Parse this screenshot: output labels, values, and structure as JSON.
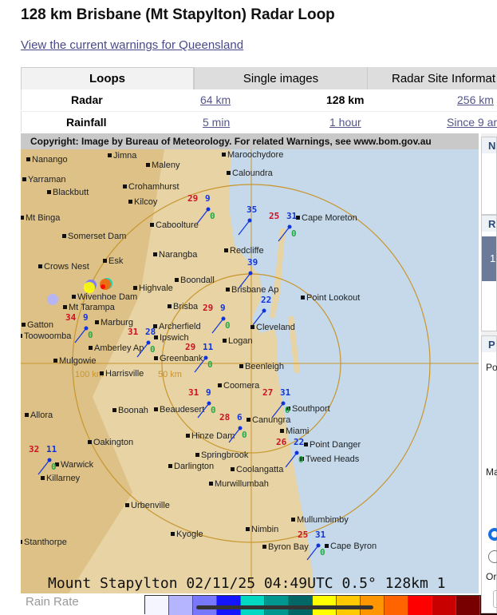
{
  "title": "128 km Brisbane (Mt Stapylton) Radar Loop",
  "warnings_link": "View the current warnings for Queensland",
  "tabs": [
    {
      "label": "Loops",
      "active": true
    },
    {
      "label": "Single images"
    },
    {
      "label": "Radar Site Informat"
    }
  ],
  "radar_row": {
    "label": "Radar",
    "links": [
      "64 km",
      "128 km",
      "256 km"
    ],
    "current": "128 km"
  },
  "rainfall_row": {
    "label": "Rainfall",
    "links": [
      "5 min",
      "1 hour",
      "Since 9 ar"
    ]
  },
  "map": {
    "copyright": "Copyright: Image by Bureau of Meteorology. For related Warnings, see www.bom.gov.au",
    "caption": "Mount Stapylton 02/11/25 04:49UTC 0.5° 128km 1",
    "range_labels": [
      "100 km",
      "50 km"
    ],
    "places": [
      "Nanango",
      "Jimna",
      "Maleny",
      "Maroochydore",
      "Caloundra",
      "Yarraman",
      "Blackbutt",
      "Crohamhurst",
      "Kilcoy",
      "Mt Binga",
      "Caboolture",
      "Somerset Dam",
      "Narangba",
      "Esk",
      "Crows Nest",
      "Redcliffe",
      "Boondall",
      "Highvale",
      "Wivenhoe Dam",
      "Brisbane Ap",
      "Point Lookout",
      "Mt Tarampa",
      "Brisba",
      "Gatton",
      "Marburg",
      "Archerfield",
      "Toowoomba",
      "Amberley Ap",
      "Ipswich",
      "Cleveland",
      "Logan",
      "Mulgowie",
      "Greenbank",
      "Harrisville",
      "Beenleigh",
      "Coomera",
      "Southport",
      "Boonah",
      "Beaudesert",
      "Canungra",
      "Allora",
      "Hinze Dam",
      "Miami",
      "Oakington",
      "Coolangatta",
      "Point Danger",
      "Warwick",
      "Springbrook",
      "Tweed Heads",
      "Darlington",
      "Killarney",
      "Murwillumbah",
      "Urbenville",
      "Mullumbimby",
      "Nimbin",
      "Kyogle",
      "Cape Byron",
      "Stanthorpe",
      "Byron Bay",
      "Cape Moreton"
    ],
    "stations": [
      {
        "temp": "29",
        "wind": "9",
        "rain": "0"
      },
      {
        "temp": "",
        "wind": "35",
        "rain": ""
      },
      {
        "temp": "25",
        "wind": "31",
        "rain": "0"
      },
      {
        "temp": "",
        "wind": "39",
        "rain": ""
      },
      {
        "temp": "",
        "wind": "22",
        "rain": ""
      },
      {
        "temp": "29",
        "wind": "9",
        "rain": "0"
      },
      {
        "temp": "34",
        "wind": "9",
        "rain": "0"
      },
      {
        "temp": "31",
        "wind": "28",
        "rain": "0"
      },
      {
        "temp": "29",
        "wind": "11",
        "rain": "0"
      },
      {
        "temp": "27",
        "wind": "31",
        "rain": "0"
      },
      {
        "temp": "31",
        "wind": "9",
        "rain": "0"
      },
      {
        "temp": "28",
        "wind": "6",
        "rain": "0"
      },
      {
        "temp": "26",
        "wind": "22",
        "rain": "0"
      },
      {
        "temp": "32",
        "wind": "11",
        "rain": "0"
      },
      {
        "temp": "25",
        "wind": "31",
        "rain": "0"
      }
    ],
    "colors": {
      "land": "#e7d3a4",
      "sea": "#c5d9ea",
      "range_ring": "#c8962e",
      "temp": "#cc1122",
      "wind": "#1133dd",
      "rain": "#22aa44"
    }
  },
  "legend": {
    "label": "Rain Rate",
    "colors": [
      "#f5f5ff",
      "#b4b4ff",
      "#7878ff",
      "#1414ff",
      "#00d8c3",
      "#009690",
      "#006666",
      "#ffff00",
      "#ffc800",
      "#ff9600",
      "#ff6400",
      "#ff0000",
      "#c80000",
      "#780000",
      "#280000"
    ],
    "loop_position": 0.5
  },
  "side_panel": {
    "headers": [
      "N",
      "R",
      "P"
    ],
    "selected": "1",
    "labels": [
      "Po",
      "Ma",
      "Or"
    ]
  }
}
